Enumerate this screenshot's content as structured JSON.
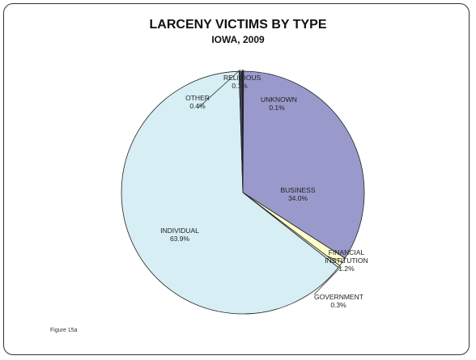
{
  "chart_data": {
    "type": "pie",
    "title": "LARCENY VICTIMS BY TYPE",
    "subtitle": "IOWA, 2009",
    "categories": [
      "UNKNOWN",
      "BUSINESS",
      "FINANCIAL INSTITUTION",
      "GOVERNMENT",
      "INDIVIDUAL",
      "OTHER",
      "RELIGIOUS"
    ],
    "values": [
      0.1,
      34.0,
      1.2,
      0.3,
      63.9,
      0.4,
      0.1
    ],
    "value_labels": [
      "0.1%",
      "34.0%",
      "1.2%",
      "0.3%",
      "63.9%",
      "0.4%",
      "0.1%"
    ],
    "colors": [
      "#222222",
      "#9999cc",
      "#ffffcc",
      "#e8f4e0",
      "#d6eef4",
      "#444466",
      "#333333"
    ],
    "note": "Figure 15a"
  }
}
